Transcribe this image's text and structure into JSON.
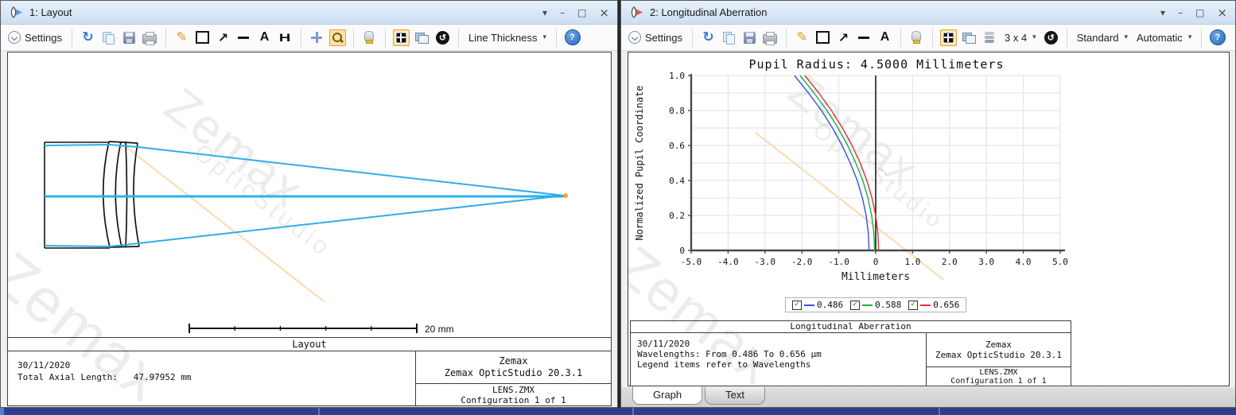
{
  "icons": {
    "caret": "▾",
    "refresh": "↻",
    "pencil": "✎",
    "arrow": "↗",
    "text_tool": "A",
    "aperture_tool": "H",
    "clock": "↺",
    "help": "?",
    "check": "✓",
    "menu": "▾",
    "minimize": "–",
    "maximize": "□",
    "close": "×"
  },
  "watermark": {
    "line1": "Zemax",
    "line2": "OpticStudio"
  },
  "colors": {
    "highlight": "#fce3a5",
    "highlight_border": "#e3a33c",
    "titlebar": "#d9e7f8",
    "bottom_bar": "#2c3f8e",
    "ray": "#27b2ee",
    "focus_dot": "#ffa21f",
    "series_blue": "#3a50d9",
    "series_green": "#14b446",
    "series_red": "#e03131"
  },
  "left_window": {
    "title": "1: Layout",
    "toolbar": {
      "settings": "Settings",
      "line_thickness": "Line Thickness"
    },
    "drawing": {
      "scale_label": "20 mm",
      "caption": "Layout"
    },
    "footer": {
      "date": "30/11/2020",
      "total_axial_length": "Total Axial Length:   47.97952 mm",
      "brand_line1": "Zemax",
      "brand_line2": "Zemax OpticStudio 20.3.1",
      "file": "LENS.ZMX",
      "config": "Configuration 1 of 1"
    }
  },
  "right_window": {
    "title": "2: Longitudinal Aberration",
    "toolbar": {
      "settings": "Settings",
      "grid_size": "3 x 4",
      "standard": "Standard",
      "automatic": "Automatic"
    },
    "tabs": [
      {
        "label": "Graph",
        "active": true
      },
      {
        "label": "Text",
        "active": false
      }
    ],
    "footer": {
      "caption": "Longitudinal Aberration",
      "date": "30/11/2020",
      "wavelengths": "Wavelengths: From 0.486 To 0.656 µm",
      "legend_note": "Legend items refer to Wavelengths",
      "brand_line1": "Zemax",
      "brand_line2": "Zemax OpticStudio 20.3.1",
      "file": "LENS.ZMX",
      "config": "Configuration 1 of 1"
    },
    "chart_data": {
      "type": "line",
      "title": "Pupil Radius: 4.5000 Millimeters",
      "xlabel": "Millimeters",
      "ylabel": "Normalized Pupil Coordinate",
      "xlim": [
        -5,
        5
      ],
      "ylim": [
        0,
        1
      ],
      "x_grid_step": 1,
      "y_grid_step": 0.1,
      "zero_line_x": 0,
      "x_tick_values": [
        -5,
        -4,
        -3,
        -2,
        -1,
        0,
        1,
        2,
        3,
        4,
        5
      ],
      "x_tick_labels": [
        "-5.0",
        "-4.0",
        "-3.0",
        "-2.0",
        "-1.0",
        "0",
        "1.0",
        "2.0",
        "3.0",
        "4.0",
        "5.0"
      ],
      "y_tick_values": [
        0,
        0.2,
        0.4,
        0.6,
        0.8,
        1
      ],
      "y_tick_labels": [
        "0",
        "0.2",
        "0.4",
        "0.6",
        "0.8",
        "1.0"
      ],
      "grid": true,
      "legend_position": "bottom",
      "pupil_y": [
        0,
        0.1,
        0.2,
        0.3,
        0.4,
        0.5,
        0.6,
        0.7,
        0.8,
        0.9,
        1.0
      ],
      "series": [
        {
          "name": "0.486",
          "color": "#3a50d9",
          "x": [
            -0.18,
            -0.2,
            -0.26,
            -0.36,
            -0.5,
            -0.69,
            -0.91,
            -1.17,
            -1.47,
            -1.82,
            -2.2
          ]
        },
        {
          "name": "0.588",
          "color": "#14b446",
          "x": [
            -0.03,
            -0.05,
            -0.11,
            -0.21,
            -0.35,
            -0.54,
            -0.76,
            -1.02,
            -1.32,
            -1.67,
            -2.05
          ]
        },
        {
          "name": "0.656",
          "color": "#e03131",
          "x": [
            0.08,
            0.06,
            0.0,
            -0.1,
            -0.24,
            -0.42,
            -0.64,
            -0.9,
            -1.2,
            -1.54,
            -1.92
          ]
        }
      ]
    }
  }
}
